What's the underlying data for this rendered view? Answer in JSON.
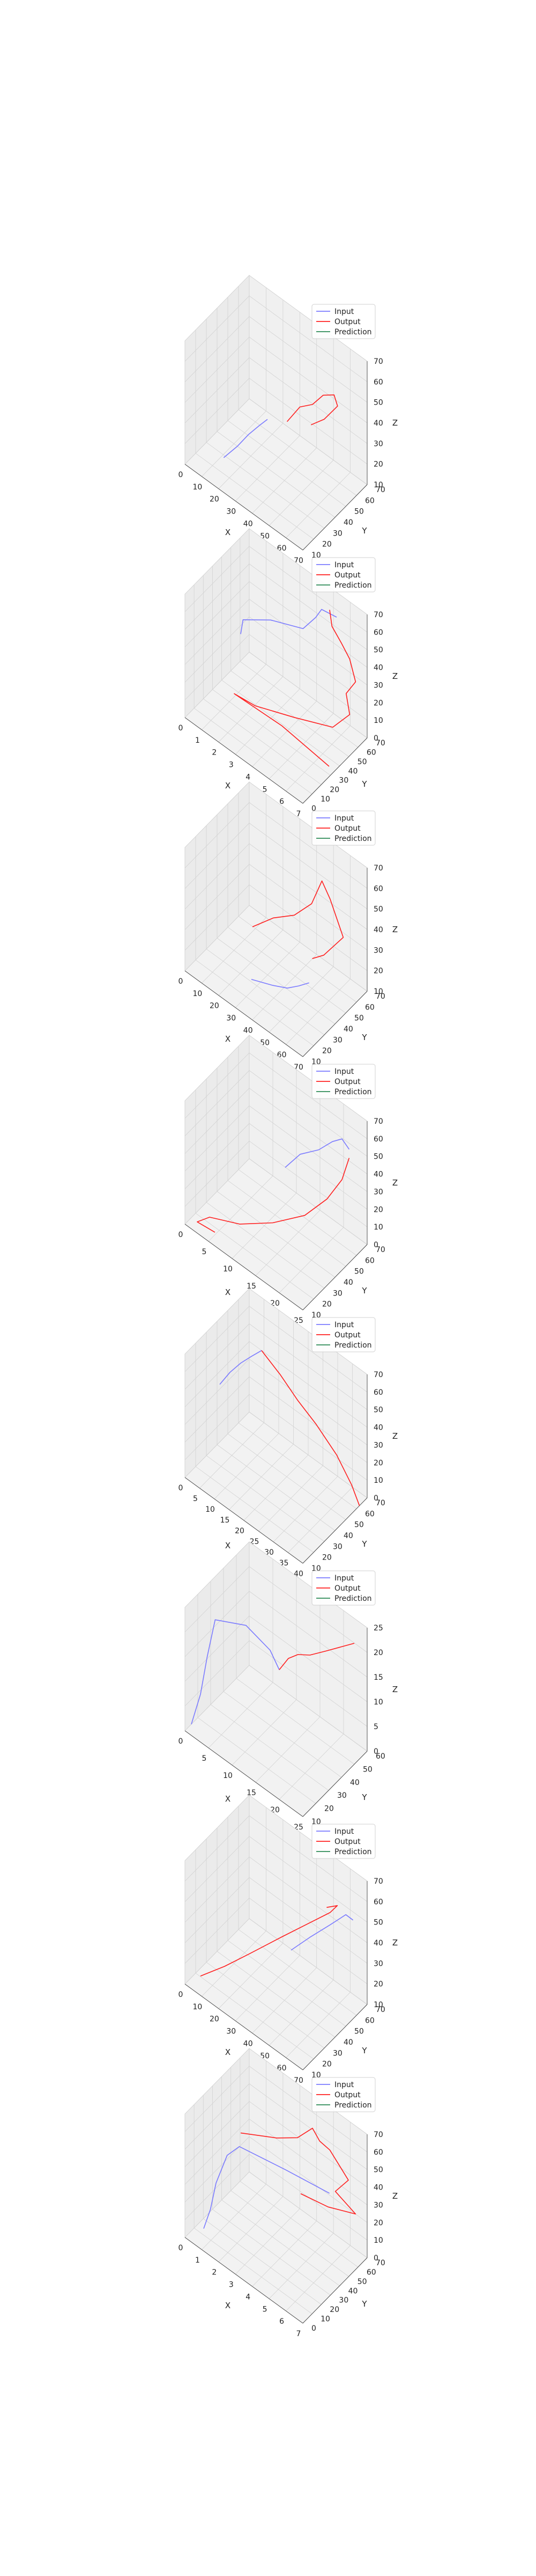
{
  "legend_labels": [
    "Input",
    "Output",
    "Prediction"
  ],
  "colors": {
    "input": "#7b7bff",
    "output": "#ff2020",
    "prediction": "#2e8b57"
  },
  "chart_data": [
    {
      "type": "line3d",
      "xlabel": "X",
      "ylabel": "Y",
      "zlabel": "Z",
      "xticks": [
        "0",
        "10",
        "20",
        "30",
        "40",
        "50",
        "60",
        "70"
      ],
      "yticks": [
        "10",
        "20",
        "30",
        "40",
        "50",
        "60",
        "70"
      ],
      "zticks": [
        "10",
        "20",
        "30",
        "40",
        "50",
        "60",
        "70"
      ],
      "series": [
        {
          "name": "Input",
          "points": [
            [
              0.22,
              0.2,
              0.1
            ],
            [
              0.28,
              0.3,
              0.18
            ],
            [
              0.32,
              0.4,
              0.25
            ],
            [
              0.36,
              0.5,
              0.3
            ],
            [
              0.4,
              0.55,
              0.35
            ]
          ]
        },
        {
          "name": "Output",
          "points": [
            [
              0.55,
              0.58,
              0.42
            ],
            [
              0.62,
              0.65,
              0.55
            ],
            [
              0.7,
              0.7,
              0.6
            ],
            [
              0.78,
              0.72,
              0.72
            ],
            [
              0.85,
              0.76,
              0.75
            ],
            [
              0.88,
              0.76,
              0.68
            ],
            [
              0.8,
              0.7,
              0.55
            ],
            [
              0.72,
              0.64,
              0.48
            ]
          ]
        },
        {
          "name": "Prediction",
          "points": []
        }
      ]
    },
    {
      "type": "line3d",
      "xlabel": "X",
      "ylabel": "Y",
      "zlabel": "Z",
      "xticks": [
        "0",
        "1",
        "2",
        "3",
        "4",
        "5",
        "6",
        "7"
      ],
      "yticks": [
        "0",
        "10",
        "20",
        "30",
        "40",
        "50",
        "60",
        "70"
      ],
      "zticks": [
        "0",
        "10",
        "20",
        "30",
        "40",
        "50",
        "60",
        "70"
      ],
      "series": [
        {
          "name": "Input",
          "points": [
            [
              0.2,
              0.5,
              0.55
            ],
            [
              0.22,
              0.5,
              0.68
            ],
            [
              0.4,
              0.6,
              0.75
            ],
            [
              0.62,
              0.7,
              0.78
            ],
            [
              0.7,
              0.75,
              0.9
            ],
            [
              0.75,
              0.75,
              1.0
            ],
            [
              0.85,
              0.8,
              0.98
            ]
          ]
        },
        {
          "name": "Output",
          "points": [
            [
              0.78,
              0.82,
              0.98
            ],
            [
              0.8,
              0.82,
              0.86
            ],
            [
              0.88,
              0.82,
              0.78
            ],
            [
              0.95,
              0.82,
              0.7
            ],
            [
              1.0,
              0.82,
              0.55
            ],
            [
              0.92,
              0.82,
              0.4
            ],
            [
              0.95,
              0.82,
              0.25
            ],
            [
              0.85,
              0.74,
              0.12
            ],
            [
              0.6,
              0.6,
              0.1
            ],
            [
              0.35,
              0.45,
              0.1
            ],
            [
              0.2,
              0.4,
              0.12
            ],
            [
              0.55,
              0.5,
              0.05
            ],
            [
              0.95,
              0.5,
              0.0
            ]
          ]
        },
        {
          "name": "Prediction",
          "points": []
        }
      ]
    },
    {
      "type": "line3d",
      "xlabel": "X",
      "ylabel": "Y",
      "zlabel": "Z",
      "xticks": [
        "0",
        "10",
        "20",
        "30",
        "40",
        "50",
        "60",
        "70"
      ],
      "yticks": [
        "10",
        "20",
        "30",
        "40",
        "50",
        "60",
        "70"
      ],
      "zticks": [
        "10",
        "20",
        "30",
        "40",
        "50",
        "60",
        "70"
      ],
      "series": [
        {
          "name": "Input",
          "points": [
            [
              0.4,
              0.3,
              0.05
            ],
            [
              0.55,
              0.35,
              0.08
            ],
            [
              0.65,
              0.4,
              0.1
            ],
            [
              0.72,
              0.45,
              0.14
            ],
            [
              0.78,
              0.5,
              0.18
            ]
          ]
        },
        {
          "name": "Output",
          "points": [
            [
              0.3,
              0.5,
              0.3
            ],
            [
              0.45,
              0.55,
              0.45
            ],
            [
              0.6,
              0.6,
              0.55
            ],
            [
              0.72,
              0.65,
              0.7
            ],
            [
              0.78,
              0.7,
              0.9
            ],
            [
              0.85,
              0.7,
              0.8
            ],
            [
              0.95,
              0.72,
              0.55
            ],
            [
              0.85,
              0.6,
              0.4
            ],
            [
              0.78,
              0.55,
              0.35
            ]
          ]
        },
        {
          "name": "Prediction",
          "points": []
        }
      ]
    },
    {
      "type": "line3d",
      "xlabel": "X",
      "ylabel": "Y",
      "zlabel": "Z",
      "xticks": [
        "0",
        "5",
        "10",
        "15",
        "20",
        "25"
      ],
      "yticks": [
        "10",
        "20",
        "30",
        "40",
        "50",
        "60",
        "70"
      ],
      "zticks": [
        "0",
        "10",
        "20",
        "30",
        "40",
        "50",
        "60",
        "70"
      ],
      "series": [
        {
          "name": "Input",
          "points": [
            [
              0.55,
              0.55,
              0.55
            ],
            [
              0.65,
              0.6,
              0.7
            ],
            [
              0.78,
              0.65,
              0.8
            ],
            [
              0.88,
              0.68,
              0.92
            ],
            [
              0.95,
              0.7,
              0.98
            ],
            [
              1.0,
              0.72,
              0.92
            ]
          ]
        },
        {
          "name": "Output",
          "points": [
            [
              1.0,
              0.72,
              0.85
            ],
            [
              0.95,
              0.7,
              0.65
            ],
            [
              0.85,
              0.65,
              0.45
            ],
            [
              0.7,
              0.58,
              0.25
            ],
            [
              0.5,
              0.45,
              0.12
            ],
            [
              0.3,
              0.3,
              0.05
            ],
            [
              0.1,
              0.2,
              0.02
            ],
            [
              0.05,
              0.1,
              0.0
            ],
            [
              0.2,
              0.1,
              0.02
            ]
          ]
        },
        {
          "name": "Prediction",
          "points": []
        }
      ]
    },
    {
      "type": "line3d",
      "xlabel": "X",
      "ylabel": "Y",
      "zlabel": "Z",
      "xticks": [
        "0",
        "5",
        "10",
        "15",
        "20",
        "25",
        "30",
        "35",
        "40"
      ],
      "yticks": [
        "10",
        "20",
        "30",
        "40",
        "50",
        "60",
        "70"
      ],
      "zticks": [
        "0",
        "10",
        "20",
        "30",
        "40",
        "50",
        "60",
        "70"
      ],
      "series": [
        {
          "name": "Input",
          "points": [
            [
              0.05,
              0.45,
              0.55
            ],
            [
              0.12,
              0.48,
              0.68
            ],
            [
              0.2,
              0.5,
              0.8
            ],
            [
              0.28,
              0.52,
              0.9
            ],
            [
              0.35,
              0.55,
              0.98
            ]
          ]
        },
        {
          "name": "Output",
          "points": [
            [
              0.35,
              0.55,
              0.98
            ],
            [
              0.48,
              0.6,
              0.85
            ],
            [
              0.6,
              0.65,
              0.7
            ],
            [
              0.72,
              0.72,
              0.55
            ],
            [
              0.85,
              0.8,
              0.35
            ],
            [
              0.95,
              0.85,
              0.15
            ],
            [
              1.0,
              0.88,
              0.0
            ]
          ]
        },
        {
          "name": "Prediction",
          "points": []
        }
      ]
    },
    {
      "type": "line3d",
      "xlabel": "X",
      "ylabel": "Y",
      "zlabel": "Z",
      "xticks": [
        "0",
        "5",
        "10",
        "15",
        "20",
        "25"
      ],
      "yticks": [
        "10",
        "20",
        "30",
        "40",
        "50",
        "60"
      ],
      "zticks": [
        "0",
        "5",
        "10",
        "15",
        "20",
        "25"
      ],
      "series": [
        {
          "name": "Input",
          "points": [
            [
              0.0,
              0.1,
              0.0
            ],
            [
              0.05,
              0.15,
              0.25
            ],
            [
              0.08,
              0.2,
              0.55
            ],
            [
              0.12,
              0.25,
              0.85
            ],
            [
              0.3,
              0.4,
              0.85
            ],
            [
              0.45,
              0.5,
              0.7
            ],
            [
              0.5,
              0.55,
              0.55
            ]
          ]
        },
        {
          "name": "Output",
          "points": [
            [
              0.5,
              0.55,
              0.55
            ],
            [
              0.55,
              0.6,
              0.65
            ],
            [
              0.62,
              0.62,
              0.72
            ],
            [
              0.7,
              0.66,
              0.75
            ],
            [
              0.8,
              0.72,
              0.82
            ],
            [
              0.9,
              0.76,
              0.9
            ],
            [
              1.0,
              0.8,
              0.98
            ]
          ]
        },
        {
          "name": "Prediction",
          "points": []
        }
      ]
    },
    {
      "type": "line3d",
      "xlabel": "X",
      "ylabel": "Y",
      "zlabel": "Z",
      "xticks": [
        "0",
        "10",
        "20",
        "30",
        "40",
        "50",
        "60",
        "70"
      ],
      "yticks": [
        "10",
        "20",
        "30",
        "40",
        "50",
        "60",
        "70"
      ],
      "zticks": [
        "10",
        "20",
        "30",
        "40",
        "50",
        "60",
        "70"
      ],
      "series": [
        {
          "name": "Input",
          "points": [
            [
              0.6,
              0.55,
              0.4
            ],
            [
              0.72,
              0.62,
              0.55
            ],
            [
              0.85,
              0.7,
              0.7
            ],
            [
              0.95,
              0.76,
              0.82
            ],
            [
              1.0,
              0.78,
              0.8
            ]
          ]
        },
        {
          "name": "Output",
          "points": [
            [
              0.05,
              0.15,
              0.02
            ],
            [
              0.2,
              0.25,
              0.15
            ],
            [
              0.35,
              0.35,
              0.3
            ],
            [
              0.55,
              0.5,
              0.5
            ],
            [
              0.7,
              0.6,
              0.65
            ],
            [
              0.85,
              0.7,
              0.8
            ],
            [
              0.9,
              0.72,
              0.88
            ],
            [
              0.82,
              0.7,
              0.82
            ]
          ]
        },
        {
          "name": "Prediction",
          "points": []
        }
      ]
    },
    {
      "type": "line3d",
      "xlabel": "X",
      "ylabel": "Y",
      "zlabel": "Z",
      "xticks": [
        "0",
        "1",
        "2",
        "3",
        "4",
        "5",
        "6",
        "7"
      ],
      "yticks": [
        "0",
        "10",
        "20",
        "30",
        "40",
        "50",
        "60",
        "70"
      ],
      "zticks": [
        "0",
        "10",
        "20",
        "30",
        "40",
        "50",
        "60",
        "70"
      ],
      "series": [
        {
          "name": "Input",
          "points": [
            [
              0.05,
              0.2,
              0.0
            ],
            [
              0.08,
              0.25,
              0.15
            ],
            [
              0.1,
              0.3,
              0.35
            ],
            [
              0.14,
              0.4,
              0.55
            ],
            [
              0.2,
              0.48,
              0.62
            ],
            [
              0.5,
              0.65,
              0.55
            ],
            [
              0.8,
              0.78,
              0.5
            ]
          ]
        },
        {
          "name": "Output",
          "points": [
            [
              0.2,
              0.5,
              0.72
            ],
            [
              0.45,
              0.6,
              0.8
            ],
            [
              0.6,
              0.65,
              0.88
            ],
            [
              0.7,
              0.7,
              1.0
            ],
            [
              0.75,
              0.72,
              0.92
            ],
            [
              0.82,
              0.75,
              0.88
            ],
            [
              0.95,
              0.8,
              0.7
            ],
            [
              0.85,
              0.78,
              0.55
            ],
            [
              1.0,
              0.82,
              0.45
            ],
            [
              0.8,
              0.76,
              0.4
            ],
            [
              0.6,
              0.7,
              0.4
            ]
          ]
        },
        {
          "name": "Prediction",
          "points": []
        }
      ]
    }
  ]
}
